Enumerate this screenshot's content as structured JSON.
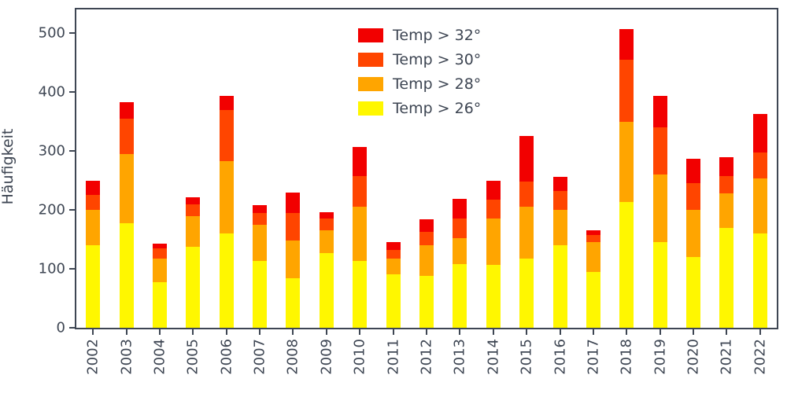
{
  "chart_data": {
    "type": "bar",
    "stacked": true,
    "title": "",
    "xlabel": "",
    "ylabel": "Häufigkeit",
    "ylim": [
      0,
      540
    ],
    "yticks": [
      0,
      100,
      200,
      300,
      400,
      500
    ],
    "grid": false,
    "legend_position": "upper center",
    "categories": [
      "2002",
      "2003",
      "2004",
      "2005",
      "2006",
      "2007",
      "2008",
      "2009",
      "2010",
      "2011",
      "2012",
      "2013",
      "2014",
      "2015",
      "2016",
      "2017",
      "2018",
      "2019",
      "2020",
      "2021",
      "2022"
    ],
    "series": [
      {
        "name": "Temp > 26°",
        "color": "#FFF700",
        "values": [
          140,
          178,
          78,
          138,
          160,
          113,
          84,
          127,
          114,
          91,
          88,
          108,
          107,
          118,
          140,
          95,
          213,
          146,
          120,
          170,
          160
        ]
      },
      {
        "name": "Temp > 28°",
        "color": "#FFA500",
        "values": [
          60,
          117,
          40,
          52,
          123,
          62,
          64,
          38,
          91,
          27,
          52,
          44,
          78,
          87,
          60,
          50,
          137,
          114,
          80,
          58,
          93
        ]
      },
      {
        "name": "Temp > 30°",
        "color": "#FF4500",
        "values": [
          25,
          60,
          17,
          20,
          87,
          20,
          47,
          20,
          53,
          14,
          23,
          33,
          33,
          43,
          32,
          13,
          105,
          80,
          45,
          30,
          45
        ]
      },
      {
        "name": "Temp > 32°",
        "color": "#F20000",
        "values": [
          25,
          28,
          8,
          11,
          24,
          13,
          34,
          11,
          49,
          13,
          21,
          34,
          31,
          78,
          24,
          7,
          52,
          54,
          42,
          31,
          65
        ]
      }
    ],
    "legend_order": [
      "Temp > 32°",
      "Temp > 30°",
      "Temp > 28°",
      "Temp > 26°"
    ]
  }
}
